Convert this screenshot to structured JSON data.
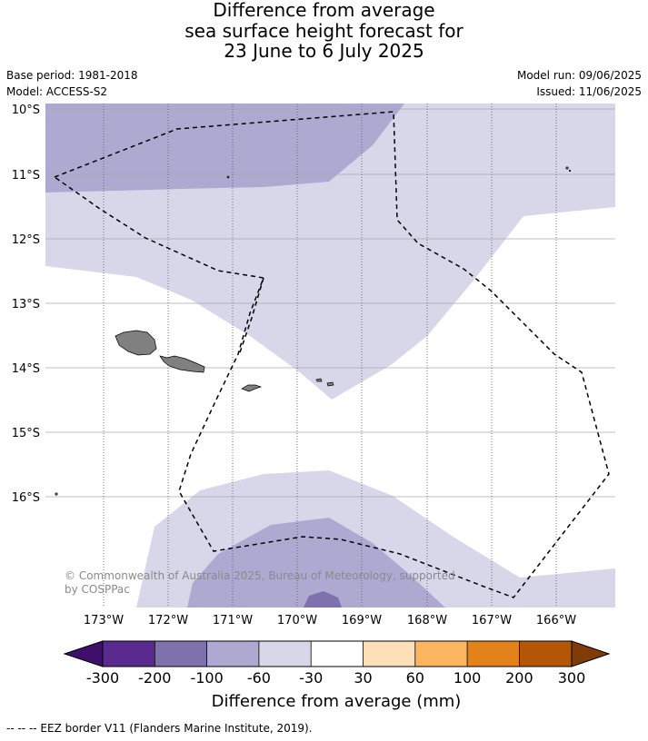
{
  "title": {
    "line1": "Difference from average",
    "line2": "sea surface height forecast for",
    "line3": "23 June to 6 July 2025"
  },
  "meta": {
    "base_period": "Base period: 1981-2018",
    "model": "Model: ACCESS-S2",
    "model_run": "Model run: 09/06/2025",
    "issued": "Issued: 11/06/2025"
  },
  "map": {
    "lat_labels": [
      "10°S",
      "11°S",
      "12°S",
      "13°S",
      "14°S",
      "15°S",
      "16°S"
    ],
    "lon_labels": [
      "173°W",
      "172°W",
      "171°W",
      "170°W",
      "169°W",
      "168°W",
      "167°W",
      "166°W"
    ],
    "copyright_line1": "© Commonwealth of Australia 2025, Bureau of Meteorology, supported",
    "copyright_line2": "by COSPPac"
  },
  "colorbar": {
    "tick_labels": [
      "-300",
      "-200",
      "-100",
      "-60",
      "-30",
      "30",
      "60",
      "100",
      "200",
      "300"
    ],
    "colors": [
      "#3f0f6b",
      "#5a2a90",
      "#7e72ae",
      "#aea9d1",
      "#d8d7ea",
      "#ffffff",
      "#fde0b8",
      "#fbb55e",
      "#e3821a",
      "#b35707",
      "#7f3b08"
    ],
    "label": "Difference from average (mm)"
  },
  "footer": {
    "eez_note": "--  --  -- EEZ border V11 (Flanders Marine Institute, 2019)."
  }
}
